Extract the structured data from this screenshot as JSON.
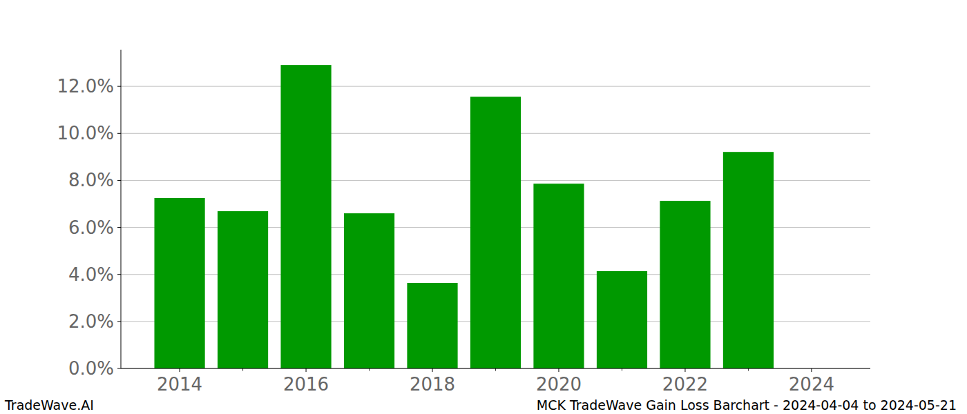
{
  "chart_data": {
    "type": "bar",
    "title": "MCK TradeWave Gain Loss Barchart - 2024-04-04 to 2024-05-21",
    "annotations": [
      "TradeWave.AI"
    ],
    "x": [
      2014,
      2015,
      2016,
      2017,
      2018,
      2019,
      2020,
      2021,
      2022,
      2023
    ],
    "values": [
      7.25,
      6.69,
      12.91,
      6.6,
      3.64,
      11.56,
      7.86,
      4.14,
      7.13,
      9.21
    ],
    "color": "#009900",
    "xlim": [
      2013.07,
      2024.93
    ],
    "xticks": [
      2014,
      2016,
      2018,
      2020,
      2022,
      2024
    ],
    "ylim": [
      0,
      13.56
    ],
    "yticks": [
      {
        "value": 0,
        "label": "0.0%"
      },
      {
        "value": 2,
        "label": "2.0%"
      },
      {
        "value": 4,
        "label": "4.0%"
      },
      {
        "value": 6,
        "label": "6.0%"
      },
      {
        "value": 8,
        "label": "8.0%"
      },
      {
        "value": 10,
        "label": "10.0%"
      },
      {
        "value": 12,
        "label": "12.0%"
      }
    ],
    "grid": true
  }
}
